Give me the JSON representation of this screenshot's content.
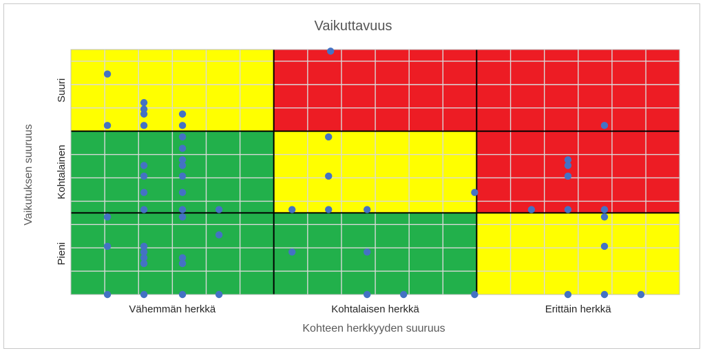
{
  "chart_data": {
    "type": "scatter",
    "title": "Vaikuttavuus",
    "xlabel": "Kohteen herkkyyden suuruus",
    "ylabel": "Vaikutuksen suuruus",
    "x_categories": [
      "Vähemmän herkkä",
      "Kohtalaisen herkkä",
      "Erittäin herkkä"
    ],
    "y_categories": [
      "Pieni",
      "Kohtalainen",
      "Suuri"
    ],
    "xlim": [
      0,
      3
    ],
    "ylim": [
      0,
      3
    ],
    "grid": true,
    "grid_x_step": 0.1667,
    "grid_y_step": 0.2857,
    "zones": [
      {
        "x": 0,
        "y": 0,
        "color": "#22B04B"
      },
      {
        "x": 1,
        "y": 0,
        "color": "#22B04B"
      },
      {
        "x": 2,
        "y": 0,
        "color": "#FFFF00"
      },
      {
        "x": 0,
        "y": 1,
        "color": "#22B04B"
      },
      {
        "x": 1,
        "y": 1,
        "color": "#FFFF00"
      },
      {
        "x": 2,
        "y": 1,
        "color": "#ED1C24"
      },
      {
        "x": 0,
        "y": 2,
        "color": "#FFFF00"
      },
      {
        "x": 1,
        "y": 2,
        "color": "#ED1C24"
      },
      {
        "x": 2,
        "y": 2,
        "color": "#ED1C24"
      }
    ],
    "marker_color": "#4472C4",
    "points": [
      {
        "x": 0.18,
        "y": 2.7
      },
      {
        "x": 0.18,
        "y": 2.07
      },
      {
        "x": 0.36,
        "y": 2.35
      },
      {
        "x": 0.36,
        "y": 2.27
      },
      {
        "x": 0.36,
        "y": 2.21
      },
      {
        "x": 0.36,
        "y": 2.07
      },
      {
        "x": 0.55,
        "y": 2.21
      },
      {
        "x": 0.55,
        "y": 2.07
      },
      {
        "x": 1.28,
        "y": 2.98
      },
      {
        "x": 2.63,
        "y": 2.07
      },
      {
        "x": 0.55,
        "y": 1.93
      },
      {
        "x": 0.55,
        "y": 1.79
      },
      {
        "x": 0.55,
        "y": 1.65
      },
      {
        "x": 0.55,
        "y": 1.58
      },
      {
        "x": 0.55,
        "y": 1.45
      },
      {
        "x": 0.55,
        "y": 1.25
      },
      {
        "x": 0.55,
        "y": 1.04
      },
      {
        "x": 0.36,
        "y": 1.58
      },
      {
        "x": 0.36,
        "y": 1.45
      },
      {
        "x": 0.36,
        "y": 1.25
      },
      {
        "x": 0.36,
        "y": 1.04
      },
      {
        "x": 1.27,
        "y": 1.93
      },
      {
        "x": 1.27,
        "y": 1.45
      },
      {
        "x": 1.99,
        "y": 1.25
      },
      {
        "x": 2.45,
        "y": 1.65
      },
      {
        "x": 2.45,
        "y": 1.58
      },
      {
        "x": 2.45,
        "y": 1.45
      },
      {
        "x": 0.73,
        "y": 1.04
      },
      {
        "x": 0.18,
        "y": 0.95
      },
      {
        "x": 0.18,
        "y": 0.59
      },
      {
        "x": 0.18,
        "y": 0.0
      },
      {
        "x": 0.36,
        "y": 0.59
      },
      {
        "x": 0.36,
        "y": 0.52
      },
      {
        "x": 0.36,
        "y": 0.45
      },
      {
        "x": 0.36,
        "y": 0.38
      },
      {
        "x": 0.36,
        "y": 0.0
      },
      {
        "x": 0.55,
        "y": 0.95
      },
      {
        "x": 0.55,
        "y": 0.45
      },
      {
        "x": 0.55,
        "y": 0.38
      },
      {
        "x": 0.55,
        "y": 0.0
      },
      {
        "x": 0.73,
        "y": 0.73
      },
      {
        "x": 0.73,
        "y": 0.0
      },
      {
        "x": 1.09,
        "y": 1.04
      },
      {
        "x": 1.09,
        "y": 0.52
      },
      {
        "x": 1.27,
        "y": 1.04
      },
      {
        "x": 1.46,
        "y": 1.04
      },
      {
        "x": 1.46,
        "y": 0.52
      },
      {
        "x": 1.46,
        "y": 0.0
      },
      {
        "x": 1.64,
        "y": 0.0
      },
      {
        "x": 1.99,
        "y": 0.0
      },
      {
        "x": 2.27,
        "y": 1.04
      },
      {
        "x": 2.45,
        "y": 1.04
      },
      {
        "x": 2.45,
        "y": 0.0
      },
      {
        "x": 2.63,
        "y": 1.04
      },
      {
        "x": 2.63,
        "y": 0.95
      },
      {
        "x": 2.63,
        "y": 0.59
      },
      {
        "x": 2.63,
        "y": 0.0
      },
      {
        "x": 2.81,
        "y": 0.0
      }
    ]
  }
}
